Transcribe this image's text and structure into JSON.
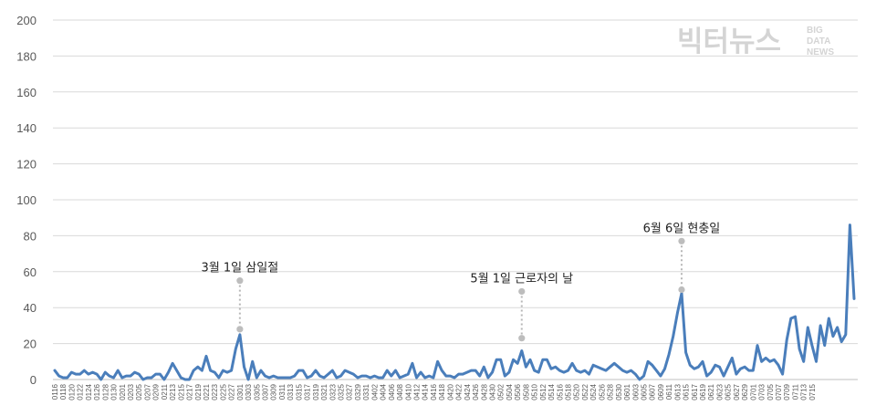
{
  "watermark": {
    "main": "빅터뉴스",
    "sub": [
      "BIG",
      "DATA",
      "NEWS"
    ]
  },
  "chart_data": {
    "type": "line",
    "title": "",
    "xlabel": "",
    "ylabel": "",
    "ylim": [
      0,
      200
    ],
    "yticks": [
      0,
      20,
      40,
      60,
      80,
      100,
      120,
      140,
      160,
      180,
      200
    ],
    "grid": true,
    "legend": "none",
    "color": "#4a7ebb",
    "x_tick_labels": [
      "0116",
      "0118",
      "0120",
      "0122",
      "0124",
      "0126",
      "0128",
      "0130",
      "0201",
      "0203",
      "0205",
      "0207",
      "0209",
      "0211",
      "0213",
      "0215",
      "0217",
      "0219",
      "0221",
      "0223",
      "0225",
      "0227",
      "0301",
      "0303",
      "0305",
      "0307",
      "0309",
      "0311",
      "0313",
      "0315",
      "0317",
      "0319",
      "0321",
      "0323",
      "0325",
      "0327",
      "0329",
      "0331",
      "0402",
      "0404",
      "0406",
      "0408",
      "0410",
      "0412",
      "0414",
      "0416",
      "0418",
      "0420",
      "0422",
      "0424",
      "0426",
      "0428",
      "0430",
      "0502",
      "0504",
      "0506",
      "0508",
      "0510",
      "0512",
      "0514",
      "0516",
      "0518",
      "0520",
      "0522",
      "0524",
      "0526",
      "0528",
      "0530",
      "0601",
      "0603",
      "0605",
      "0607",
      "0609",
      "0611",
      "0613",
      "0615",
      "0617",
      "0619",
      "0621",
      "0623",
      "0625",
      "0627",
      "0629",
      "0701",
      "0703",
      "0705",
      "0707",
      "0709",
      "0711",
      "0713",
      "0715"
    ],
    "values": [
      5,
      2,
      1,
      1,
      4,
      3,
      3,
      5,
      3,
      4,
      3,
      0,
      4,
      2,
      1,
      5,
      1,
      2,
      2,
      4,
      3,
      0,
      1,
      1,
      3,
      3,
      0,
      4,
      9,
      5,
      1,
      0,
      0,
      5,
      7,
      5,
      13,
      5,
      4,
      1,
      5,
      4,
      5,
      17,
      25,
      7,
      0,
      10,
      1,
      5,
      2,
      1,
      2,
      1,
      1,
      1,
      1,
      2,
      5,
      5,
      1,
      2,
      5,
      2,
      1,
      3,
      5,
      1,
      2,
      5,
      4,
      3,
      1,
      2,
      2,
      1,
      2,
      1,
      1,
      5,
      2,
      5,
      1,
      2,
      3,
      9,
      1,
      4,
      1,
      2,
      1,
      10,
      5,
      2,
      2,
      1,
      3,
      3,
      4,
      5,
      5,
      2,
      7,
      1,
      4,
      11,
      11,
      2,
      4,
      11,
      9,
      16,
      7,
      11,
      5,
      4,
      11,
      11,
      6,
      7,
      5,
      4,
      5,
      9,
      5,
      4,
      5,
      3,
      8,
      7,
      6,
      5,
      7,
      9,
      7,
      5,
      4,
      5,
      3,
      0,
      2,
      10,
      8,
      5,
      2,
      6,
      14,
      24,
      37,
      48,
      15,
      8,
      6,
      7,
      10,
      2,
      4,
      8,
      7,
      2,
      7,
      12,
      3,
      6,
      7,
      5,
      5,
      19,
      10,
      12,
      10,
      11,
      8,
      3,
      22,
      34,
      35,
      17,
      10,
      29,
      19,
      10,
      30,
      19,
      34,
      24,
      29,
      21,
      25,
      86,
      45
    ],
    "annotations": [
      {
        "label": "3월 1일 삼일절",
        "index": 44,
        "value": 28,
        "label_value": 55
      },
      {
        "label": "5월 1일 근로자의 날",
        "index": 111,
        "value": 23,
        "label_value": 49
      },
      {
        "label": "6월 6일 현충일",
        "index": 149,
        "value": 50,
        "label_value": 77
      }
    ]
  }
}
